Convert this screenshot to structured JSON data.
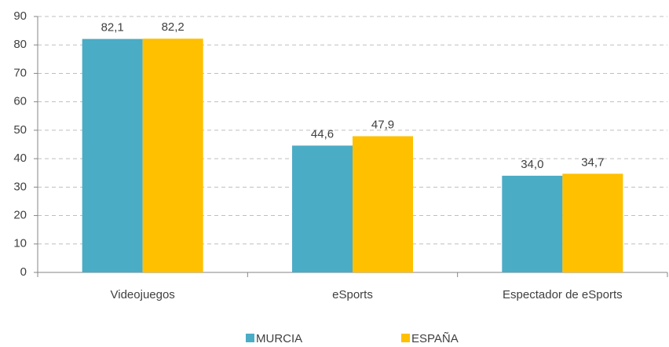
{
  "chart_data": {
    "type": "bar",
    "categories": [
      "Videojuegos",
      "eSports",
      "Espectador de eSports"
    ],
    "series": [
      {
        "name": "MURCIA",
        "color": "#4bacc6",
        "values": [
          82.1,
          44.6,
          34.0
        ],
        "value_labels": [
          "82,1",
          "44,6",
          "34,0"
        ]
      },
      {
        "name": "ESPAÑA",
        "color": "#ffc000",
        "values": [
          82.2,
          47.9,
          34.7
        ],
        "value_labels": [
          "82,2",
          "47,9",
          "34,7"
        ]
      }
    ],
    "ylim": [
      0,
      90
    ],
    "yticks": [
      0,
      10,
      20,
      30,
      40,
      50,
      60,
      70,
      80,
      90
    ],
    "grid": true,
    "legend": "bottom"
  }
}
